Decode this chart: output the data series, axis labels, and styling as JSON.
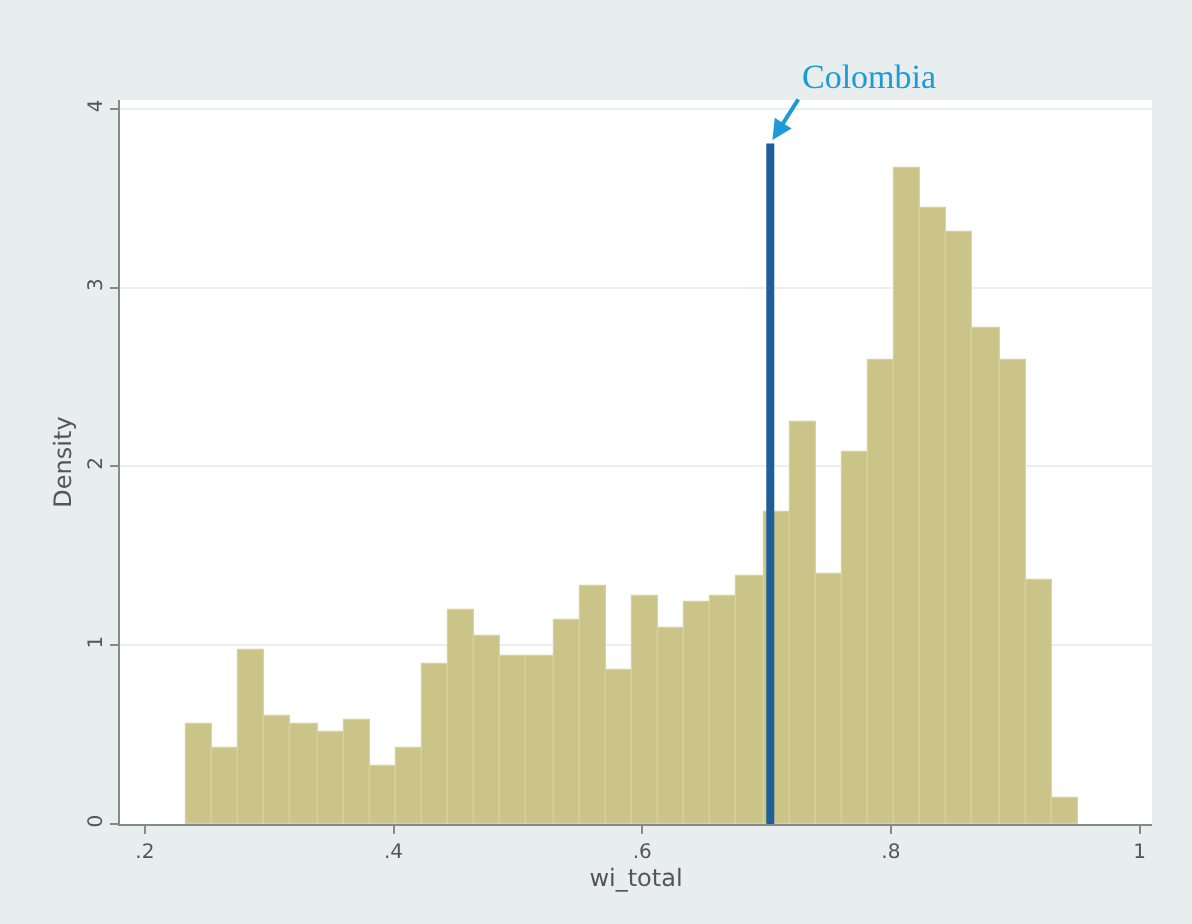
{
  "chart_data": {
    "type": "histogram",
    "xlabel": "wi_total",
    "ylabel": "Density",
    "bins": [
      0.233,
      0.2541,
      0.2752,
      0.2963,
      0.3174,
      0.3385,
      0.3596,
      0.3807,
      0.4018,
      0.4229,
      0.444,
      0.4651,
      0.4862,
      0.5073,
      0.5284,
      0.5495,
      0.5706,
      0.5917,
      0.6128,
      0.6339,
      0.655,
      0.6761,
      0.6972,
      0.7183,
      0.7394,
      0.7605,
      0.7816,
      0.8027,
      0.8238,
      0.8449,
      0.866,
      0.8871,
      0.9082,
      0.9293,
      0.9505
    ],
    "values": [
      0.56,
      0.43,
      0.97,
      0.6,
      0.56,
      0.52,
      0.58,
      0.32,
      0.43,
      0.9,
      1.2,
      1.05,
      0.94,
      0.94,
      1.14,
      1.33,
      0.86,
      1.27,
      1.1,
      1.24,
      1.27,
      1.39,
      1.74,
      2.25,
      1.4,
      2.08,
      2.6,
      3.67,
      3.45,
      3.31,
      2.77,
      2.6,
      1.37,
      0.15
    ],
    "color": "#cbc488",
    "xlim": [
      0.18,
      1.01
    ],
    "ylim": [
      0,
      4.05
    ],
    "xticks": [
      {
        "value": 0.2,
        "label": ".2"
      },
      {
        "value": 0.4,
        "label": ".4"
      },
      {
        "value": 0.6,
        "label": ".6"
      },
      {
        "value": 0.8,
        "label": ".8"
      },
      1
    ],
    "yticks": [
      0,
      1,
      2,
      3,
      4
    ],
    "grid": "y",
    "ref_lines": [
      {
        "axis": "x",
        "value": 0.703,
        "label": "Colombia",
        "color": "#1f5f99"
      }
    ]
  }
}
